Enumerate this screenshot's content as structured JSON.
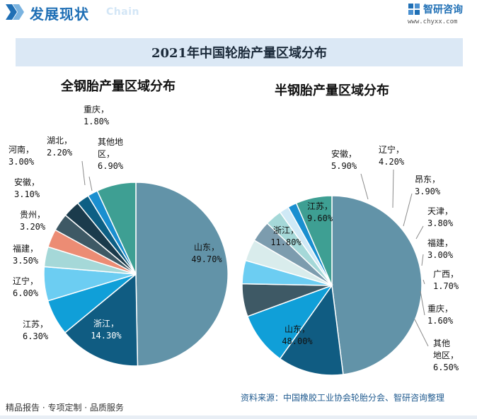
{
  "header": {
    "title": "发展现状",
    "chain_text": "Chain",
    "logo_name": "智研咨询",
    "logo_url": "www.chyxx.com"
  },
  "main_title": "2021年中国轮胎产量区域分布",
  "chart_data": [
    {
      "type": "pie",
      "title": "全钢胎产量区域分布",
      "slices": [
        {
          "label": "山东",
          "value": 49.7,
          "value_text": "49.70%",
          "color": "#6293a8"
        },
        {
          "label": "浙江",
          "value": 14.3,
          "value_text": "14.30%",
          "color": "#105c82"
        },
        {
          "label": "江苏",
          "value": 6.3,
          "value_text": "6.30%",
          "color": "#109fd8"
        },
        {
          "label": "辽宁",
          "value": 6.0,
          "value_text": "6.00%",
          "color": "#6ccdf2"
        },
        {
          "label": "福建",
          "value": 3.5,
          "value_text": "3.50%",
          "color": "#a5d8d8"
        },
        {
          "label": "贵州",
          "value": 3.2,
          "value_text": "3.20%",
          "color": "#ec8c74"
        },
        {
          "label": "安徽",
          "value": 3.1,
          "value_text": "3.10%",
          "color": "#3e5965"
        },
        {
          "label": "河南",
          "value": 3.0,
          "value_text": "3.00%",
          "color": "#1b3b4c"
        },
        {
          "label": "湖北",
          "value": 2.2,
          "value_text": "2.20%",
          "color": "#0d5f84"
        },
        {
          "label": "重庆",
          "value": 1.8,
          "value_text": "1.80%",
          "color": "#1a8fd0"
        },
        {
          "label": "其他地区",
          "value": 6.9,
          "value_text": "6.90%",
          "color": "#3e9f93"
        }
      ]
    },
    {
      "type": "pie",
      "title": "半钢胎产量区域分布",
      "slices": [
        {
          "label": "山东",
          "value": 48.0,
          "value_text": "48.00%",
          "color": "#6293a8"
        },
        {
          "label": "浙江",
          "value": 11.8,
          "value_text": "11.80%",
          "color": "#105c82"
        },
        {
          "label": "江苏",
          "value": 9.6,
          "value_text": "9.60%",
          "color": "#109fd8"
        },
        {
          "label": "安徽",
          "value": 5.9,
          "value_text": "5.90%",
          "color": "#3e5965"
        },
        {
          "label": "辽宁",
          "value": 4.2,
          "value_text": "4.20%",
          "color": "#6ccdf2"
        },
        {
          "label": "昂东",
          "value": 3.9,
          "value_text": "3.90%",
          "color": "#d9ecec"
        },
        {
          "label": "天津",
          "value": 3.8,
          "value_text": "3.80%",
          "color": "#7c9cae"
        },
        {
          "label": "福建",
          "value": 3.0,
          "value_text": "3.00%",
          "color": "#a5d8d8"
        },
        {
          "label": "广西",
          "value": 1.7,
          "value_text": "1.70%",
          "color": "#cfe9f6"
        },
        {
          "label": "重庆",
          "value": 1.6,
          "value_text": "1.60%",
          "color": "#1a8fd0"
        },
        {
          "label": "其他地区",
          "value": 6.5,
          "value_text": "6.50%",
          "color": "#3e9f93"
        }
      ]
    }
  ],
  "footer": {
    "left_text": "精品报告 · 专项定制 · 品质服务",
    "source_text": "资料来源：中国橡胶工业协会轮胎分会、智研咨询整理"
  }
}
